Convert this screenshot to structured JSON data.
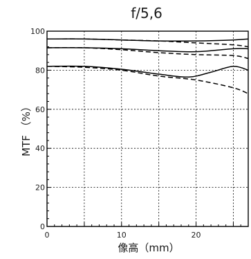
{
  "chart_data": {
    "type": "line",
    "title": "f/5,6",
    "xlabel": "像高（mm）",
    "ylabel": "MTF （%）",
    "xlim": [
      0,
      27
    ],
    "ylim": [
      0,
      100
    ],
    "xticks": [
      0,
      10,
      20
    ],
    "yticks": [
      0,
      20,
      40,
      60,
      80,
      100
    ],
    "grid": true,
    "series": [
      {
        "style": "solid",
        "x": [
          0,
          5,
          10,
          15,
          20,
          25,
          27
        ],
        "y": [
          96,
          96,
          95.5,
          95,
          95,
          95.5,
          96
        ]
      },
      {
        "style": "dashed",
        "x": [
          0,
          5,
          10,
          15,
          20,
          25,
          27
        ],
        "y": [
          96,
          96,
          95.5,
          95,
          94,
          93,
          92
        ]
      },
      {
        "style": "solid",
        "x": [
          0,
          5,
          10,
          15,
          20,
          25,
          27
        ],
        "y": [
          91.5,
          91.5,
          91,
          90,
          89.5,
          91,
          91
        ]
      },
      {
        "style": "dashed",
        "x": [
          0,
          5,
          10,
          15,
          20,
          25,
          27
        ],
        "y": [
          91.5,
          91.5,
          90.5,
          89,
          88,
          87.5,
          86
        ]
      },
      {
        "style": "solid",
        "x": [
          0,
          5,
          10,
          15,
          19,
          22,
          25,
          27
        ],
        "y": [
          82,
          82,
          80.5,
          78,
          76.5,
          79,
          82,
          80
        ]
      },
      {
        "style": "dashed",
        "x": [
          0,
          5,
          10,
          15,
          20,
          25,
          27
        ],
        "y": [
          82,
          81.5,
          80,
          77,
          75,
          71,
          68
        ]
      }
    ]
  }
}
